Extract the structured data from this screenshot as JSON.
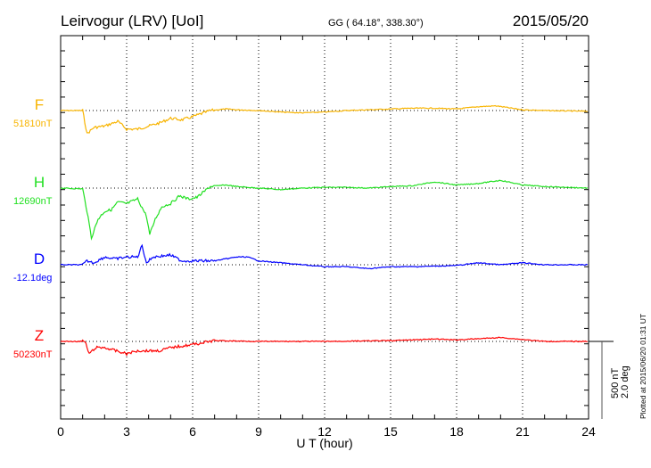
{
  "header": {
    "station": "Leirvogur (LRV)  [UoI]",
    "coords": "GG ( 64.18°, 338.30°)",
    "date": "2015/05/20"
  },
  "footer": {
    "plotted": "Plotted at 2015/06/20 01:31  UT"
  },
  "chart_data": {
    "type": "line",
    "xlabel": "U T (hour)",
    "xlim": [
      0,
      24
    ],
    "xticks": [
      "0",
      "3",
      "6",
      "9",
      "12",
      "15",
      "18",
      "21",
      "24"
    ],
    "scale": {
      "nT": "500 nT",
      "deg": "2.0 deg",
      "nT_value": 500,
      "deg_value": 2.0
    },
    "grid": "dotted verticals every 3 h, dotted baselines",
    "series": [
      {
        "name": "F",
        "baseline_label": "51810nT",
        "unit": "nT",
        "color": "#f8b400",
        "points": [
          [
            0,
            0
          ],
          [
            1.0,
            0
          ],
          [
            1.2,
            -150
          ],
          [
            1.5,
            -110
          ],
          [
            2,
            -100
          ],
          [
            2.6,
            -70
          ],
          [
            3,
            -120
          ],
          [
            3.5,
            -120
          ],
          [
            4,
            -100
          ],
          [
            4.5,
            -80
          ],
          [
            5,
            -50
          ],
          [
            5.5,
            -60
          ],
          [
            6,
            -40
          ],
          [
            6.8,
            0
          ],
          [
            7.5,
            10
          ],
          [
            8,
            5
          ],
          [
            9,
            0
          ],
          [
            10,
            -10
          ],
          [
            11,
            -15
          ],
          [
            12,
            -10
          ],
          [
            13,
            0
          ],
          [
            14,
            5
          ],
          [
            15,
            10
          ],
          [
            16,
            15
          ],
          [
            17,
            15
          ],
          [
            18,
            10
          ],
          [
            19,
            25
          ],
          [
            19.8,
            30
          ],
          [
            20.5,
            15
          ],
          [
            21,
            5
          ],
          [
            22,
            0
          ],
          [
            24,
            -5
          ]
        ]
      },
      {
        "name": "H",
        "baseline_label": "12690nT",
        "unit": "nT",
        "color": "#22e022",
        "points": [
          [
            0,
            0
          ],
          [
            1,
            -5
          ],
          [
            1.2,
            -150
          ],
          [
            1.4,
            -320
          ],
          [
            1.7,
            -200
          ],
          [
            2,
            -150
          ],
          [
            2.3,
            -140
          ],
          [
            2.6,
            -90
          ],
          [
            3,
            -100
          ],
          [
            3.5,
            -70
          ],
          [
            3.9,
            -180
          ],
          [
            4.05,
            -300
          ],
          [
            4.3,
            -200
          ],
          [
            4.6,
            -120
          ],
          [
            5,
            -100
          ],
          [
            5.4,
            -50
          ],
          [
            5.8,
            -70
          ],
          [
            6.2,
            -60
          ],
          [
            6.8,
            10
          ],
          [
            7.5,
            20
          ],
          [
            8,
            10
          ],
          [
            9,
            0
          ],
          [
            10,
            -10
          ],
          [
            11,
            0
          ],
          [
            12,
            5
          ],
          [
            13,
            5
          ],
          [
            14,
            0
          ],
          [
            15,
            10
          ],
          [
            16,
            15
          ],
          [
            17,
            40
          ],
          [
            18,
            20
          ],
          [
            19,
            30
          ],
          [
            20,
            50
          ],
          [
            21,
            20
          ],
          [
            22,
            10
          ],
          [
            24,
            0
          ]
        ]
      },
      {
        "name": "D",
        "baseline_label": "-12.1deg",
        "unit": "deg",
        "color": "#0000ff",
        "points": [
          [
            0,
            0
          ],
          [
            1,
            0
          ],
          [
            1.2,
            0.1
          ],
          [
            1.5,
            0.05
          ],
          [
            2,
            0.2
          ],
          [
            2.5,
            0.15
          ],
          [
            3,
            0.2
          ],
          [
            3.5,
            0.2
          ],
          [
            3.7,
            0.5
          ],
          [
            3.9,
            0.05
          ],
          [
            4.2,
            0.2
          ],
          [
            5,
            0.25
          ],
          [
            5.5,
            0.1
          ],
          [
            6,
            0.1
          ],
          [
            7,
            0.1
          ],
          [
            8,
            0.2
          ],
          [
            8.5,
            0.2
          ],
          [
            9,
            0.1
          ],
          [
            10,
            0.05
          ],
          [
            12,
            -0.05
          ],
          [
            13,
            -0.05
          ],
          [
            14,
            -0.1
          ],
          [
            15,
            -0.05
          ],
          [
            16,
            -0.05
          ],
          [
            18,
            -0.02
          ],
          [
            19,
            0.05
          ],
          [
            20,
            0
          ],
          [
            21,
            0.05
          ],
          [
            22,
            0
          ],
          [
            24,
            0
          ]
        ]
      },
      {
        "name": "Z",
        "baseline_label": "50230nT",
        "unit": "nT",
        "color": "#ff0000",
        "points": [
          [
            0,
            0
          ],
          [
            1.1,
            0
          ],
          [
            1.3,
            -80
          ],
          [
            1.6,
            -40
          ],
          [
            2,
            -40
          ],
          [
            2.5,
            -60
          ],
          [
            3,
            -80
          ],
          [
            3.5,
            -60
          ],
          [
            4,
            -60
          ],
          [
            4.5,
            -60
          ],
          [
            5,
            -40
          ],
          [
            6,
            -20
          ],
          [
            7,
            5
          ],
          [
            9,
            0
          ],
          [
            12,
            0
          ],
          [
            15,
            5
          ],
          [
            17,
            15
          ],
          [
            18,
            10
          ],
          [
            20,
            25
          ],
          [
            22,
            0
          ],
          [
            24,
            0
          ]
        ]
      }
    ]
  }
}
